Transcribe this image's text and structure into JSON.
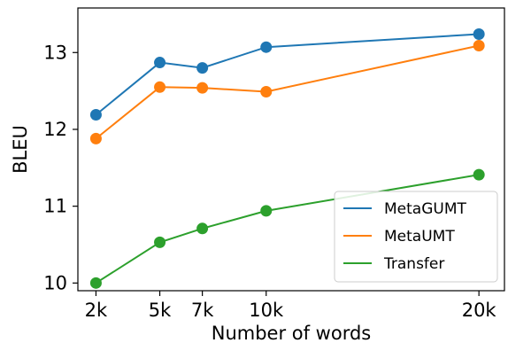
{
  "chart_data": {
    "type": "line",
    "xlabel": "Number of words",
    "ylabel": "BLEU",
    "x": [
      2,
      5,
      7,
      10,
      20
    ],
    "x_tick_labels": [
      "2k",
      "5k",
      "7k",
      "10k",
      "20k"
    ],
    "y_ticks": [
      10,
      11,
      12,
      13
    ],
    "xlim": [
      1.15,
      21.2
    ],
    "ylim": [
      9.9,
      13.58
    ],
    "grid": false,
    "legend_position": "lower-right",
    "series": [
      {
        "name": "MetaGUMT",
        "color": "#1f77b4",
        "values": [
          12.19,
          12.87,
          12.8,
          13.07,
          13.24
        ]
      },
      {
        "name": "MetaUMT",
        "color": "#ff7f0e",
        "values": [
          11.88,
          12.55,
          12.54,
          12.49,
          13.09
        ]
      },
      {
        "name": "Transfer",
        "color": "#2ca02c",
        "values": [
          10.0,
          10.53,
          10.71,
          10.94,
          11.41
        ]
      }
    ]
  }
}
